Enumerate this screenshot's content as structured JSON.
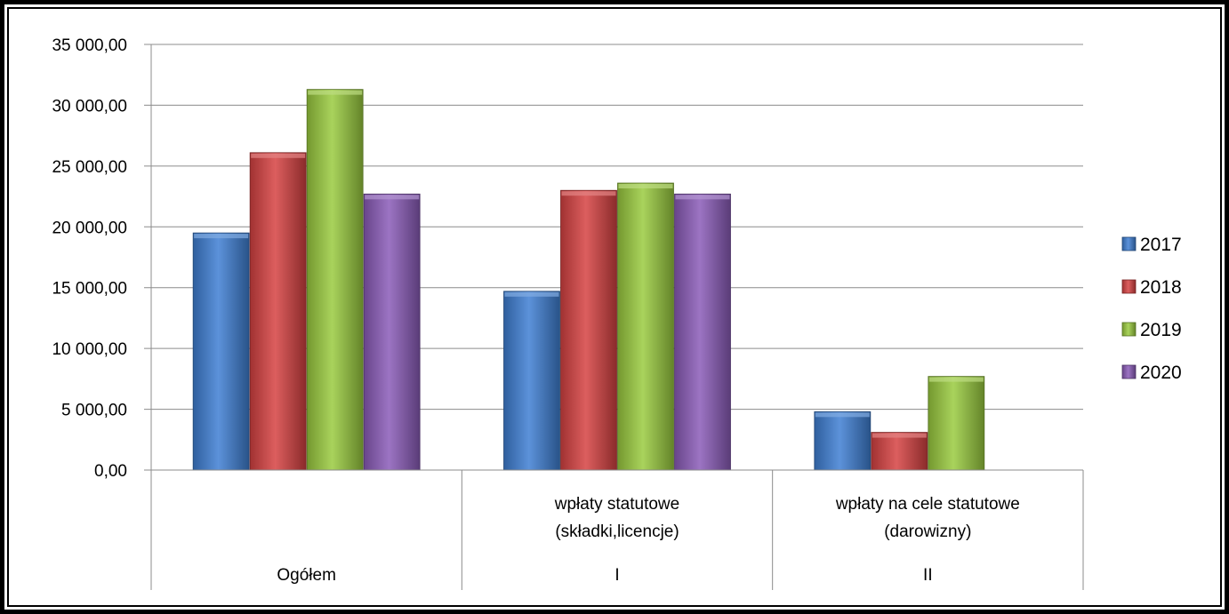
{
  "chart_data": {
    "type": "bar",
    "title": "",
    "xlabel": "",
    "ylabel": "",
    "ylim": [
      0,
      35000
    ],
    "y_ticks": [
      0,
      5000,
      10000,
      15000,
      20000,
      25000,
      30000,
      35000
    ],
    "y_tick_labels": [
      "0,00",
      "5 000,00",
      "10 000,00",
      "15 000,00",
      "20 000,00",
      "25 000,00",
      "30 000,00",
      "35 000,00"
    ],
    "grid": true,
    "legend_position": "right",
    "categories": [
      {
        "level2": "",
        "level1": "Ogółem"
      },
      {
        "level2": "wpłaty statutowe\n(składki,licencje)",
        "level1": "I"
      },
      {
        "level2": "wpłaty na cele statutowe\n(darowizny)",
        "level1": "II"
      }
    ],
    "category_label_lines": [
      {
        "line1": "",
        "line2": "",
        "group": "Ogółem"
      },
      {
        "line1": "wpłaty statutowe",
        "line2": "(składki,licencje)",
        "group": "I"
      },
      {
        "line1": "wpłaty na cele statutowe",
        "line2": "(darowizny)",
        "group": "II"
      }
    ],
    "series": [
      {
        "name": "2017",
        "color": "#3f7fd3",
        "values": [
          19500,
          14700,
          4800
        ]
      },
      {
        "name": "2018",
        "color": "#d64242",
        "values": [
          26100,
          23000,
          3100
        ]
      },
      {
        "name": "2019",
        "color": "#9acb3f",
        "values": [
          31300,
          23600,
          7700
        ]
      },
      {
        "name": "2020",
        "color": "#8a5cb8",
        "values": [
          22700,
          22700,
          null
        ]
      }
    ]
  }
}
